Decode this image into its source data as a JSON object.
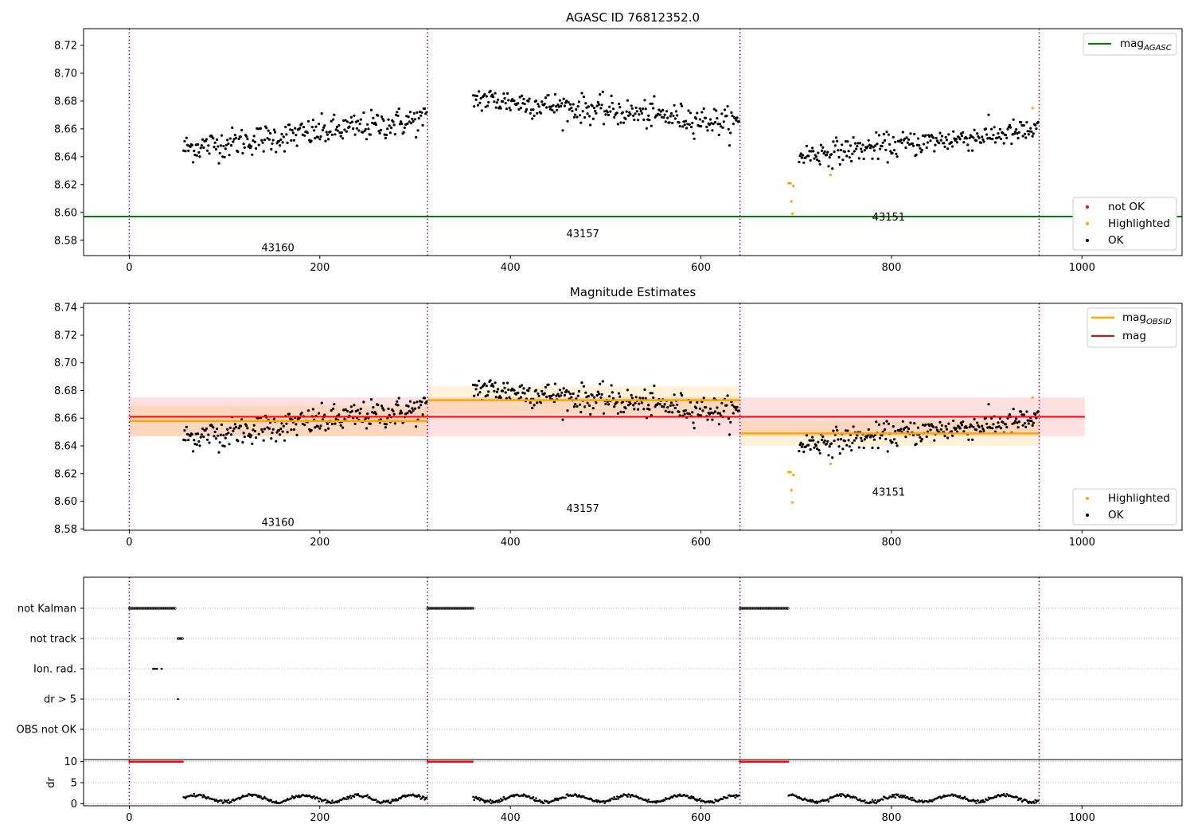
{
  "figure": {
    "obs_boundaries": [
      0,
      313,
      641,
      955
    ],
    "obs_labels": [
      {
        "obsid": "43160",
        "x": 156,
        "y_label": "8.575"
      },
      {
        "obsid": "43157",
        "x": 476,
        "y_label": "8.585"
      },
      {
        "obsid": "43151",
        "x": 797,
        "y_label": "8.597"
      }
    ]
  },
  "chart_data": [
    {
      "type": "scatter",
      "title": "AGASC ID 76812352.0",
      "xlabel": "",
      "ylabel": "",
      "xlim": [
        -48,
        1105
      ],
      "ylim": [
        8.569,
        8.732
      ],
      "xticks": [
        "0",
        "200",
        "400",
        "600",
        "800",
        "1000"
      ],
      "yticks": [
        "8.58",
        "8.60",
        "8.62",
        "8.64",
        "8.66",
        "8.68",
        "8.70",
        "8.72"
      ],
      "lines": [
        {
          "name": "mag_AGASC",
          "color": "#008000",
          "y": 8.597,
          "x_range": [
            -48,
            1105
          ]
        }
      ],
      "scatter_legend": [
        {
          "name": "not OK",
          "color": "#ff0000"
        },
        {
          "name": "Highlighted",
          "color": "#ffa500"
        },
        {
          "name": "OK",
          "color": "#000000"
        }
      ],
      "legend_position": [
        "top-right",
        "bottom-right"
      ]
    },
    {
      "type": "scatter",
      "title": "Magnitude Estimates",
      "xlabel": "",
      "ylabel": "",
      "xlim": [
        -48,
        1105
      ],
      "ylim": [
        8.579,
        8.743
      ],
      "xticks": [
        "0",
        "200",
        "400",
        "600",
        "800",
        "1000"
      ],
      "yticks": [
        "8.58",
        "8.60",
        "8.62",
        "8.64",
        "8.66",
        "8.68",
        "8.70",
        "8.72",
        "8.74"
      ],
      "mag": {
        "name": "mag",
        "color": "#ff0000",
        "value": 8.661,
        "band": [
          8.647,
          8.675
        ],
        "x_range": [
          0,
          1003
        ]
      },
      "mag_obsid": [
        {
          "x_range": [
            0,
            313
          ],
          "value": 8.658,
          "band": [
            8.647,
            8.669
          ]
        },
        {
          "x_range": [
            313,
            641
          ],
          "value": 8.673,
          "band": [
            8.663,
            8.683
          ]
        },
        {
          "x_range": [
            641,
            955
          ],
          "value": 8.649,
          "band": [
            8.64,
            8.658
          ]
        }
      ],
      "mag_obsid_name": "mag_OBSID",
      "mag_obsid_color": "#ffa500",
      "scatter_legend": [
        {
          "name": "Highlighted",
          "color": "#ffa500"
        },
        {
          "name": "OK",
          "color": "#000000"
        }
      ],
      "legend_position": [
        "top-right",
        "bottom-right"
      ]
    },
    {
      "type": "scatter",
      "title": "",
      "xlim": [
        -48,
        1105
      ],
      "categories": [
        "OBS not OK",
        "dr > 5",
        "Ion. rad.",
        "not track",
        "not Kalman"
      ],
      "flags": [
        {
          "category": "not Kalman",
          "ranges": [
            [
              0,
              49
            ],
            [
              313,
              361
            ],
            [
              641,
              692
            ]
          ]
        },
        {
          "category": "not track",
          "ranges": [
            [
              51,
              56
            ]
          ]
        },
        {
          "category": "Ion. rad.",
          "points": [
            25,
            27,
            29,
            34
          ]
        },
        {
          "category": "dr > 5",
          "points": [
            51
          ]
        }
      ]
    },
    {
      "type": "scatter",
      "title": "",
      "xlabel": "",
      "ylabel": "dr",
      "xlim": [
        -48,
        1105
      ],
      "ylim": [
        -0.5,
        10.5
      ],
      "yticks": [
        "0",
        "5",
        "10"
      ],
      "xticks": [
        "0",
        "200",
        "400",
        "600",
        "800",
        "1000"
      ],
      "capped_value": 10,
      "capped_ranges": [
        [
          0,
          57
        ],
        [
          313,
          361
        ],
        [
          641,
          692
        ]
      ]
    }
  ]
}
